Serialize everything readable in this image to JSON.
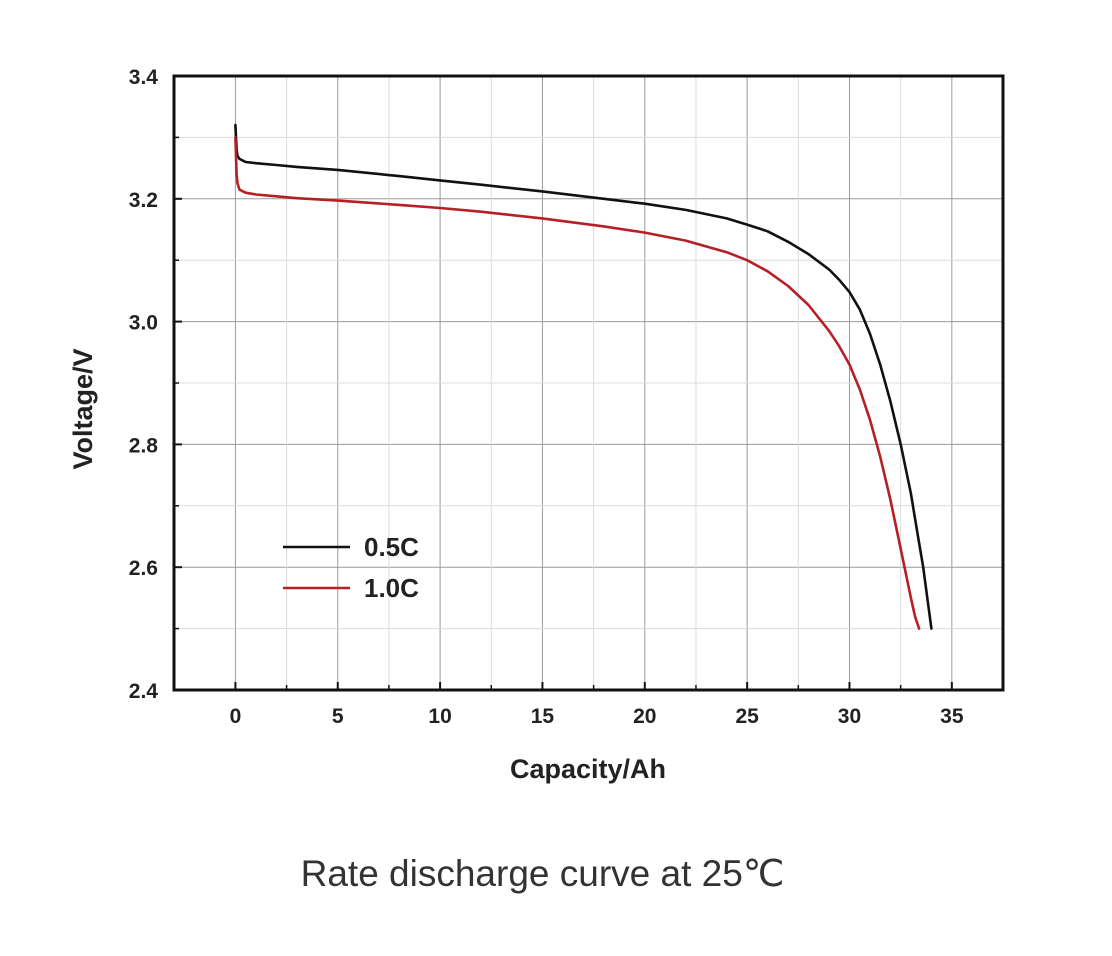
{
  "caption": "Rate discharge curve at 25℃",
  "chart_data": {
    "type": "line",
    "title": "",
    "xlabel": "Capacity/Ah",
    "ylabel": "Voltage/V",
    "xlim": [
      -3,
      37.5
    ],
    "ylim": [
      2.4,
      3.4
    ],
    "xticks": [
      0,
      5,
      10,
      15,
      20,
      25,
      30,
      35
    ],
    "xtick_labels": [
      "0",
      "5",
      "10",
      "15",
      "20",
      "25",
      "30",
      "35"
    ],
    "yticks": [
      2.4,
      2.6,
      2.8,
      3.0,
      3.2,
      3.4
    ],
    "ytick_labels": [
      "2.4",
      "2.6",
      "2.8",
      "3.0",
      "3.2",
      "3.4"
    ],
    "grid": true,
    "legend_position": "lower-left",
    "series": [
      {
        "name": "0.5C",
        "color": "#111111",
        "x": [
          0.0,
          0.03,
          0.06,
          0.1,
          0.2,
          0.5,
          1,
          2,
          3,
          5,
          8,
          10,
          12,
          15,
          18,
          20,
          22,
          24,
          25,
          26,
          27,
          28,
          29,
          29.5,
          30,
          30.5,
          31,
          31.5,
          32,
          32.5,
          33,
          33.3,
          33.6,
          33.8,
          34.0
        ],
        "y": [
          3.32,
          3.3,
          3.28,
          3.27,
          3.265,
          3.26,
          3.258,
          3.255,
          3.252,
          3.247,
          3.237,
          3.23,
          3.223,
          3.212,
          3.2,
          3.192,
          3.182,
          3.168,
          3.158,
          3.147,
          3.13,
          3.11,
          3.085,
          3.068,
          3.048,
          3.02,
          2.98,
          2.93,
          2.87,
          2.8,
          2.72,
          2.66,
          2.6,
          2.55,
          2.5
        ]
      },
      {
        "name": "1.0C",
        "color": "#b52025",
        "x": [
          0.0,
          0.03,
          0.06,
          0.1,
          0.2,
          0.5,
          1,
          2,
          3,
          5,
          8,
          10,
          12,
          15,
          18,
          20,
          22,
          24,
          25,
          26,
          27,
          28,
          29,
          29.5,
          30,
          30.5,
          31,
          31.5,
          32,
          32.5,
          33,
          33.2,
          33.4
        ],
        "y": [
          3.3,
          3.27,
          3.24,
          3.225,
          3.215,
          3.21,
          3.207,
          3.204,
          3.201,
          3.197,
          3.19,
          3.185,
          3.179,
          3.168,
          3.155,
          3.145,
          3.132,
          3.113,
          3.1,
          3.082,
          3.058,
          3.027,
          2.985,
          2.96,
          2.93,
          2.89,
          2.84,
          2.78,
          2.71,
          2.63,
          2.55,
          2.52,
          2.5
        ]
      }
    ]
  }
}
